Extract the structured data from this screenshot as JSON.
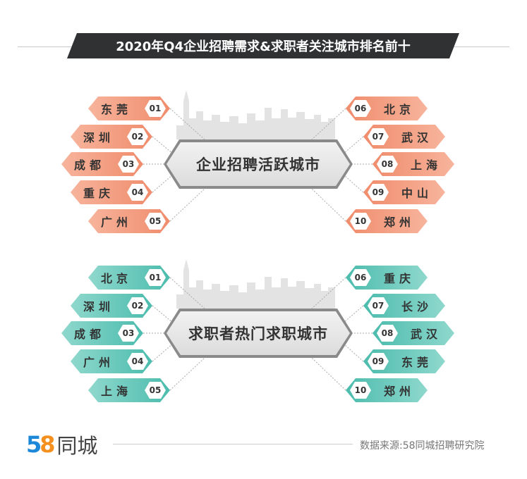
{
  "title": "2020年Q4企业招聘需求&求职者关注城市排名前十",
  "sections": [
    {
      "center": "企业招聘活跃城市",
      "color": "#f08c6c",
      "color_light": "#f7b49c",
      "left": [
        {
          "rank": "01",
          "city": "东莞"
        },
        {
          "rank": "02",
          "city": "深圳"
        },
        {
          "rank": "03",
          "city": "成都"
        },
        {
          "rank": "04",
          "city": "重庆"
        },
        {
          "rank": "05",
          "city": "广州"
        }
      ],
      "right": [
        {
          "rank": "06",
          "city": "北京"
        },
        {
          "rank": "07",
          "city": "武汉"
        },
        {
          "rank": "08",
          "city": "上海"
        },
        {
          "rank": "09",
          "city": "中山"
        },
        {
          "rank": "10",
          "city": "郑州"
        }
      ]
    },
    {
      "center": "求职者热门求职城市",
      "color": "#4cbcad",
      "color_light": "#8fd8cd",
      "left": [
        {
          "rank": "01",
          "city": "北京"
        },
        {
          "rank": "02",
          "city": "深圳"
        },
        {
          "rank": "03",
          "city": "成都"
        },
        {
          "rank": "04",
          "city": "广州"
        },
        {
          "rank": "05",
          "city": "上海"
        }
      ],
      "right": [
        {
          "rank": "06",
          "city": "重庆"
        },
        {
          "rank": "07",
          "city": "长沙"
        },
        {
          "rank": "08",
          "city": "武汉"
        },
        {
          "rank": "09",
          "city": "东莞"
        },
        {
          "rank": "10",
          "city": "郑州"
        }
      ]
    }
  ],
  "footer": {
    "logo_5": "5",
    "logo_8": "8",
    "logo_name": "同城",
    "source": "数据来源:58同城招聘研究院"
  }
}
